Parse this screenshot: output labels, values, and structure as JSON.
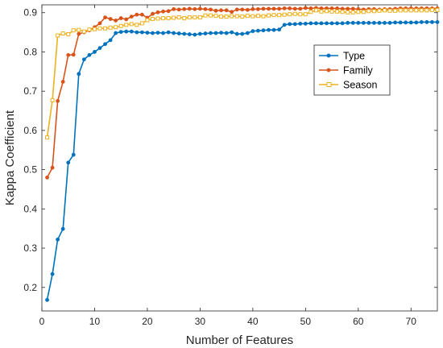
{
  "chart_data": {
    "type": "line",
    "xlabel": "Number of Features",
    "ylabel": "Kappa Coefficient",
    "xlim": [
      0,
      75
    ],
    "ylim": [
      0.14,
      0.92
    ],
    "xticks": [
      0,
      10,
      20,
      30,
      40,
      50,
      60,
      70
    ],
    "yticks": [
      0.2,
      0.3,
      0.4,
      0.5,
      0.6,
      0.7,
      0.8,
      0.9
    ],
    "xtick_labels": [
      "0",
      "10",
      "20",
      "30",
      "40",
      "50",
      "60",
      "70"
    ],
    "ytick_labels": [
      "0.2",
      "0.3",
      "0.4",
      "0.5",
      "0.6",
      "0.7",
      "0.8",
      "0.9"
    ],
    "grid": false,
    "legend_position": "upper-right",
    "x": [
      1,
      2,
      3,
      4,
      5,
      6,
      7,
      8,
      9,
      10,
      11,
      12,
      13,
      14,
      15,
      16,
      17,
      18,
      19,
      20,
      21,
      22,
      23,
      24,
      25,
      26,
      27,
      28,
      29,
      30,
      31,
      32,
      33,
      34,
      35,
      36,
      37,
      38,
      39,
      40,
      41,
      42,
      43,
      44,
      45,
      46,
      47,
      48,
      49,
      50,
      51,
      52,
      53,
      54,
      55,
      56,
      57,
      58,
      59,
      60,
      61,
      62,
      63,
      64,
      65,
      66,
      67,
      68,
      69,
      70,
      71,
      72,
      73,
      74,
      75
    ],
    "series": [
      {
        "name": "Type",
        "color": "#0072BD",
        "marker": "circle",
        "values": [
          0.168,
          0.234,
          0.322,
          0.349,
          0.518,
          0.538,
          0.744,
          0.781,
          0.792,
          0.8,
          0.81,
          0.82,
          0.83,
          0.848,
          0.851,
          0.852,
          0.852,
          0.85,
          0.85,
          0.849,
          0.848,
          0.849,
          0.848,
          0.85,
          0.848,
          0.847,
          0.846,
          0.845,
          0.844,
          0.846,
          0.847,
          0.848,
          0.848,
          0.849,
          0.848,
          0.85,
          0.846,
          0.846,
          0.848,
          0.853,
          0.854,
          0.855,
          0.856,
          0.856,
          0.857,
          0.869,
          0.871,
          0.871,
          0.872,
          0.872,
          0.873,
          0.873,
          0.873,
          0.873,
          0.873,
          0.873,
          0.873,
          0.874,
          0.874,
          0.874,
          0.874,
          0.874,
          0.874,
          0.874,
          0.874,
          0.874,
          0.875,
          0.875,
          0.875,
          0.875,
          0.875,
          0.876,
          0.876,
          0.876,
          0.876
        ]
      },
      {
        "name": "Family",
        "color": "#D95319",
        "marker": "circle",
        "values": [
          0.48,
          0.505,
          0.675,
          0.724,
          0.792,
          0.793,
          0.846,
          0.85,
          0.855,
          0.863,
          0.873,
          0.888,
          0.884,
          0.88,
          0.886,
          0.883,
          0.89,
          0.895,
          0.895,
          0.887,
          0.897,
          0.901,
          0.903,
          0.904,
          0.909,
          0.908,
          0.909,
          0.91,
          0.909,
          0.91,
          0.909,
          0.908,
          0.905,
          0.906,
          0.906,
          0.902,
          0.908,
          0.908,
          0.907,
          0.909,
          0.909,
          0.91,
          0.91,
          0.91,
          0.91,
          0.911,
          0.911,
          0.91,
          0.91,
          0.912,
          0.911,
          0.912,
          0.911,
          0.911,
          0.911,
          0.911,
          0.91,
          0.91,
          0.91,
          0.909,
          0.908,
          0.909,
          0.909,
          0.908,
          0.909,
          0.909,
          0.91,
          0.911,
          0.911,
          0.911,
          0.911,
          0.911,
          0.911,
          0.911,
          0.911
        ]
      },
      {
        "name": "Season",
        "color": "#EDB120",
        "marker": "square",
        "values": [
          0.582,
          0.677,
          0.842,
          0.847,
          0.845,
          0.855,
          0.856,
          0.852,
          0.857,
          0.858,
          0.86,
          0.86,
          0.862,
          0.863,
          0.866,
          0.869,
          0.871,
          0.869,
          0.873,
          0.881,
          0.884,
          0.885,
          0.886,
          0.886,
          0.887,
          0.888,
          0.886,
          0.888,
          0.888,
          0.888,
          0.893,
          0.893,
          0.892,
          0.89,
          0.89,
          0.891,
          0.891,
          0.89,
          0.892,
          0.891,
          0.892,
          0.891,
          0.893,
          0.894,
          0.894,
          0.895,
          0.896,
          0.897,
          0.896,
          0.896,
          0.902,
          0.906,
          0.903,
          0.904,
          0.903,
          0.903,
          0.902,
          0.901,
          0.901,
          0.902,
          0.902,
          0.904,
          0.904,
          0.905,
          0.906,
          0.905,
          0.905,
          0.906,
          0.906,
          0.906,
          0.906,
          0.906,
          0.906,
          0.907,
          0.907
        ]
      }
    ]
  }
}
